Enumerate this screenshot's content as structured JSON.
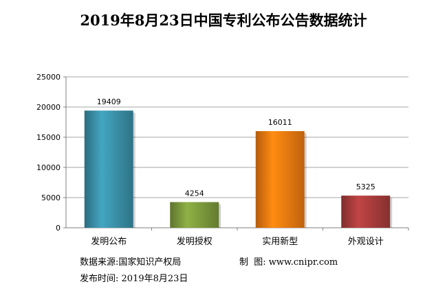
{
  "chart_data": {
    "type": "bar",
    "title": "2019年8月23日中国专利公布公告数据统计",
    "categories": [
      "发明公布",
      "发明授权",
      "实用新型",
      "外观设计"
    ],
    "values": [
      19409,
      4254,
      16011,
      5325
    ],
    "data_labels": [
      "19409",
      "4254",
      "16011",
      "5325"
    ],
    "ylim": [
      0,
      25000
    ],
    "yticks": [
      0,
      5000,
      10000,
      15000,
      20000,
      25000
    ],
    "ytick_labels": [
      "0",
      "5000",
      "10000",
      "15000",
      "20000",
      "25000"
    ],
    "grid": true,
    "legend": "none",
    "colors": [
      "#3a90a8",
      "#7c9a3c",
      "#f07a10",
      "#a83c3c"
    ]
  },
  "footer": {
    "source_label": "数据来源:",
    "source_value": "国家知识产权局",
    "publisher_label": "制  图:",
    "publisher_value": "www.cnipr.com",
    "date_label": "发布时间:",
    "date_value": "2019年8月23日"
  }
}
